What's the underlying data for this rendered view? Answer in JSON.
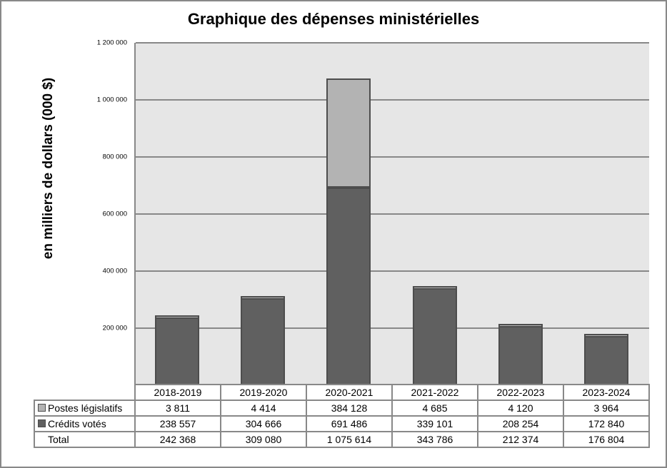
{
  "chart_data": {
    "type": "bar",
    "stacked": true,
    "title": "Graphique des dépenses ministérielles",
    "xlabel": "",
    "ylabel": "en milliers  de dollars  (000 $)",
    "ylim": [
      0,
      1200000
    ],
    "yticks": [
      {
        "value": 200000,
        "label": "200 000"
      },
      {
        "value": 400000,
        "label": "400 000"
      },
      {
        "value": 600000,
        "label": "600 000"
      },
      {
        "value": 800000,
        "label": "800 000"
      },
      {
        "value": 1000000,
        "label": "1 000 000"
      },
      {
        "value": 1200000,
        "label": "1 200 000"
      }
    ],
    "grid": true,
    "legend_position": "data-table-left",
    "categories": [
      "2018-2019",
      "2019-2020",
      "2020-2021",
      "2021-2022",
      "2022-2023",
      "2023-2024"
    ],
    "series": [
      {
        "name": "Postes législatifs",
        "color": "#b3b3b3",
        "values": [
          3811,
          4414,
          384128,
          4685,
          4120,
          3964
        ],
        "labels": [
          "3 811",
          "4 414",
          "384 128",
          "4 685",
          "4 120",
          "3 964"
        ]
      },
      {
        "name": "Crédits votés",
        "color": "#606060",
        "values": [
          238557,
          304666,
          691486,
          339101,
          208254,
          172840
        ],
        "labels": [
          "238 557",
          "304 666",
          "691 486",
          "339 101",
          "208 254",
          "172 840"
        ]
      }
    ],
    "totals": {
      "name": "Total",
      "values": [
        242368,
        309080,
        1075614,
        343786,
        212374,
        176804
      ],
      "labels": [
        "242 368",
        "309 080",
        "1 075 614",
        "343 786",
        "212 374",
        "176 804"
      ]
    }
  }
}
